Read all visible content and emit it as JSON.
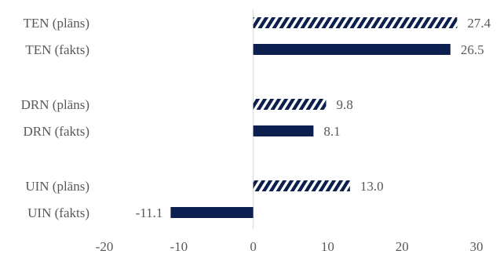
{
  "chart_data": {
    "type": "bar",
    "orientation": "horizontal",
    "categories": [
      "TEN (plāns)",
      "TEN (fakts)",
      "DRN (plāns)",
      "DRN (fakts)",
      "UIN (plāns)",
      "UIN (fakts)"
    ],
    "values": [
      27.4,
      26.5,
      9.8,
      8.1,
      13.0,
      -11.1
    ],
    "value_labels": [
      "27.4",
      "26.5",
      "9.8",
      "8.1",
      "13.0",
      "-11.1"
    ],
    "bar_style": [
      "hatched",
      "solid",
      "hatched",
      "solid",
      "hatched",
      "solid"
    ],
    "groups": [
      [
        "TEN (plāns)",
        "TEN (fakts)"
      ],
      [
        "DRN (plāns)",
        "DRN (fakts)"
      ],
      [
        "UIN (plāns)",
        "UIN (fakts)"
      ]
    ],
    "xlim": [
      -20,
      30
    ],
    "xticks": [
      "-20",
      "-10",
      "0",
      "10",
      "20",
      "30"
    ],
    "grid": false,
    "legend": "none",
    "title": "",
    "xlabel": "",
    "ylabel": "",
    "colors": {
      "bar": "#0c1f4f",
      "text": "#595959",
      "zero_line": "#d9d9d9"
    }
  }
}
